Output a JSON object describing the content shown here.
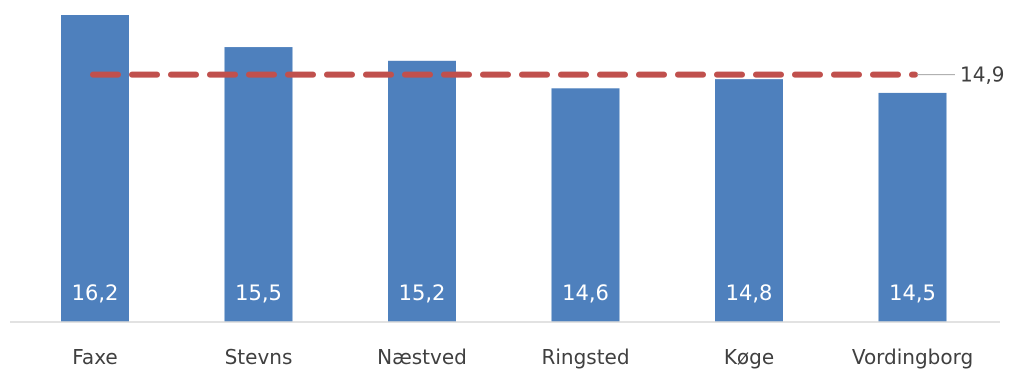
{
  "chart_data": {
    "type": "bar",
    "categories": [
      "Faxe",
      "Stevns",
      "Næstved",
      "Ringsted",
      "Køge",
      "Vordingborg"
    ],
    "values": [
      16.2,
      15.5,
      15.2,
      14.6,
      14.8,
      14.5
    ],
    "value_labels": [
      "16,2",
      "15,5",
      "15,2",
      "14,6",
      "14,8",
      "14,5"
    ],
    "reference_line": {
      "value": 14.9,
      "label": "14,9",
      "style": "dashed"
    },
    "title": "",
    "xlabel": "",
    "ylabel": "",
    "ylim": [
      9.5,
      16.2
    ],
    "grid": false,
    "legend": "none",
    "colors": {
      "bar": "#4e80bd",
      "reference_line": "#c0504d",
      "value_label": "#ffffff",
      "category_label": "#404040",
      "axis": "#d9d9d9"
    }
  }
}
